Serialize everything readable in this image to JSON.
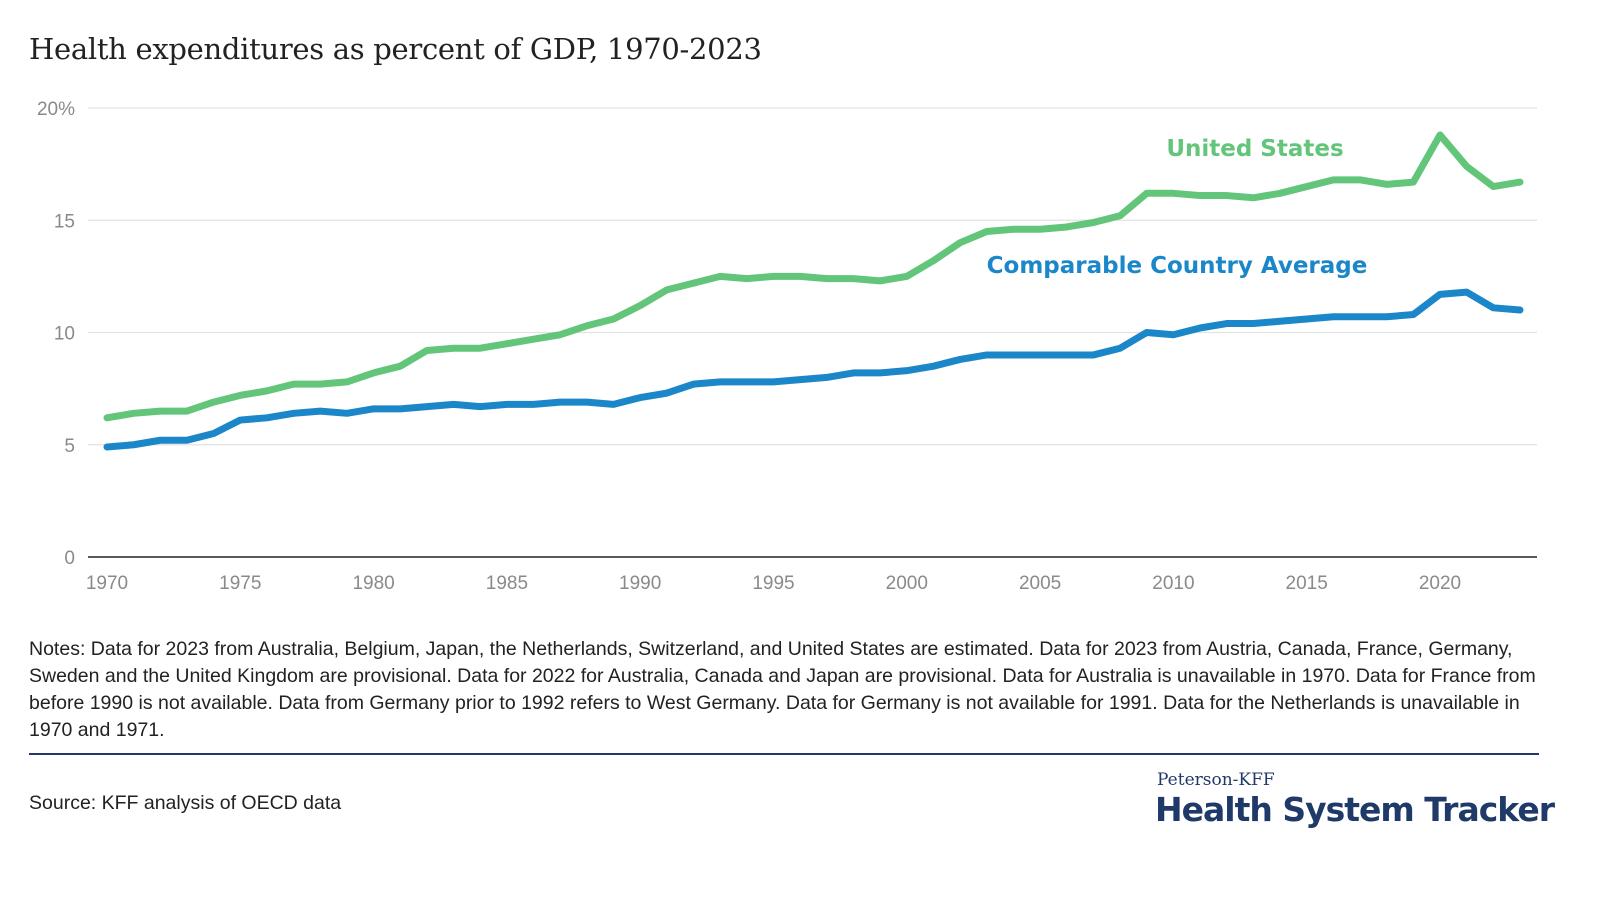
{
  "title": "Health expenditures as percent of GDP, 1970-2023",
  "notes": "Notes: Data for 2023 from Australia, Belgium, Japan, the Netherlands, Switzerland, and United States are estimated. Data for 2023 from Austria, Canada, France, Germany, Sweden and the United Kingdom are provisional. Data for 2022 for Australia, Canada and Japan are provisional. Data for Australia is unavailable in 1970. Data for France from before 1990 is not available.  Data from Germany prior to 1992 refers to West Germany. Data for Germany is not available for 1991. Data for the Netherlands is unavailable in 1970 and 1971.",
  "source": "Source: KFF analysis of OECD data",
  "logo": {
    "top": "Peterson-KFF",
    "main": "Health System Tracker"
  },
  "chart_data": {
    "type": "line",
    "title": "Health expenditures as percent of GDP, 1970-2023",
    "xlim": [
      1970,
      2023
    ],
    "ylim": [
      0,
      20
    ],
    "y_ticks": [
      "0",
      "5",
      "10",
      "15",
      "20%"
    ],
    "y_tick_values": [
      0,
      5,
      10,
      15,
      20
    ],
    "x_ticks": [
      "1970",
      "1975",
      "1980",
      "1985",
      "1990",
      "1995",
      "2000",
      "2005",
      "2010",
      "2015",
      "2020"
    ],
    "grid": true,
    "x": [
      1970,
      1971,
      1972,
      1973,
      1974,
      1975,
      1976,
      1977,
      1978,
      1979,
      1980,
      1981,
      1982,
      1983,
      1984,
      1985,
      1986,
      1987,
      1988,
      1989,
      1990,
      1991,
      1992,
      1993,
      1994,
      1995,
      1996,
      1997,
      1998,
      1999,
      2000,
      2001,
      2002,
      2003,
      2004,
      2005,
      2006,
      2007,
      2008,
      2009,
      2010,
      2011,
      2012,
      2013,
      2014,
      2015,
      2016,
      2017,
      2018,
      2019,
      2020,
      2021,
      2022,
      2023
    ],
    "series": [
      {
        "name": "United States",
        "color": "#62c57a",
        "values": [
          6.2,
          6.4,
          6.5,
          6.5,
          6.9,
          7.2,
          7.4,
          7.7,
          7.7,
          7.8,
          8.2,
          8.5,
          9.2,
          9.3,
          9.3,
          9.5,
          9.7,
          9.9,
          10.3,
          10.6,
          11.2,
          11.9,
          12.2,
          12.5,
          12.4,
          12.5,
          12.5,
          12.4,
          12.4,
          12.3,
          12.5,
          13.2,
          14.0,
          14.5,
          14.6,
          14.6,
          14.7,
          14.9,
          15.2,
          16.2,
          16.2,
          16.1,
          16.1,
          16.0,
          16.2,
          16.5,
          16.8,
          16.8,
          16.6,
          16.7,
          18.8,
          17.4,
          16.5,
          16.7
        ]
      },
      {
        "name": "Comparable Country Average",
        "color": "#1b87c9",
        "values": [
          4.9,
          5.0,
          5.2,
          5.2,
          5.5,
          6.1,
          6.2,
          6.4,
          6.5,
          6.4,
          6.6,
          6.6,
          6.7,
          6.8,
          6.7,
          6.8,
          6.8,
          6.9,
          6.9,
          6.8,
          7.1,
          7.3,
          7.7,
          7.8,
          7.8,
          7.8,
          7.9,
          8.0,
          8.2,
          8.2,
          8.3,
          8.5,
          8.8,
          9.0,
          9.0,
          9.0,
          9.0,
          9.0,
          9.3,
          10.0,
          9.9,
          10.2,
          10.4,
          10.4,
          10.5,
          10.6,
          10.7,
          10.7,
          10.7,
          10.8,
          11.7,
          11.8,
          11.1,
          11.0
        ]
      }
    ]
  }
}
